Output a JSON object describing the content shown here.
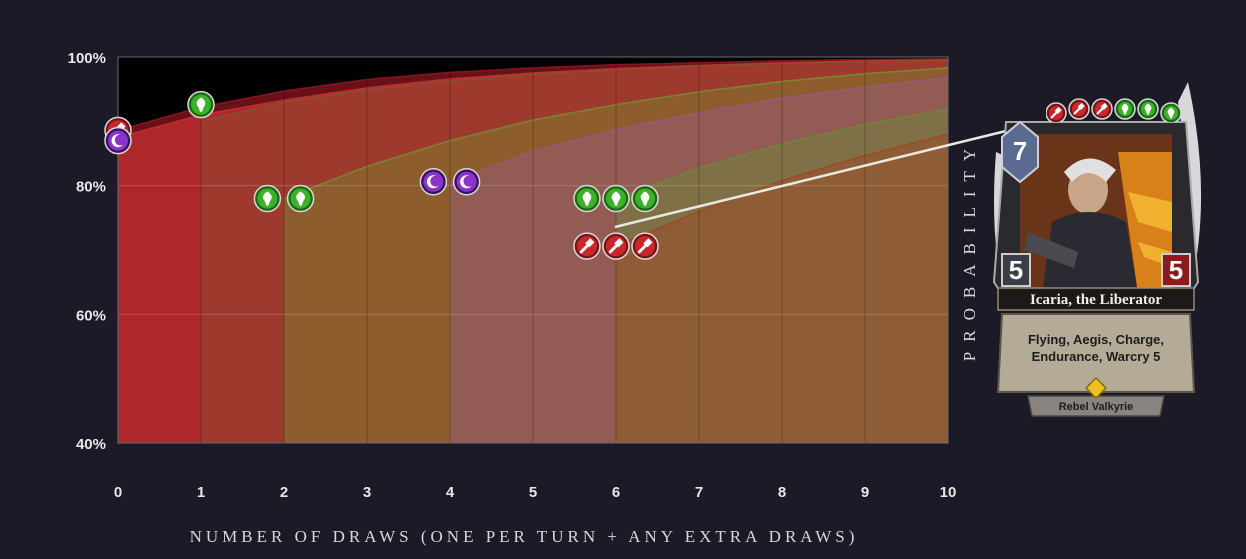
{
  "chart_data": {
    "type": "area",
    "xlabel": "NUMBER OF DRAWS (ONE PER TURN + ANY EXTRA DRAWS)",
    "ylabel": "PROBABILITY",
    "x_ticks": [
      "0",
      "1",
      "2",
      "3",
      "4",
      "5",
      "6",
      "7",
      "8",
      "9",
      "10"
    ],
    "y_ticks": [
      "40%",
      "60%",
      "80%",
      "100%"
    ],
    "xlim": [
      0,
      10
    ],
    "ylim": [
      40,
      100
    ],
    "grid": true,
    "series": [
      {
        "color": "#8c1622",
        "start": 0,
        "x": [
          0,
          1,
          2,
          3,
          4,
          5,
          6,
          7,
          8,
          9,
          10
        ],
        "y": [
          88.6,
          92.2,
          94.7,
          96.5,
          97.6,
          98.3,
          98.8,
          99.1,
          99.4,
          99.6,
          99.7
        ]
      },
      {
        "color": "#c43030",
        "start": 0,
        "x": [
          0,
          1,
          2,
          3,
          4,
          5,
          6,
          7,
          8,
          9,
          10
        ],
        "y": [
          87.5,
          91.0,
          93.3,
          95.2,
          96.6,
          97.5,
          98.2,
          98.7,
          99.1,
          99.4,
          99.6
        ]
      },
      {
        "color": "#8a5030",
        "start": 1,
        "x": [
          1,
          2,
          3,
          4,
          5,
          6,
          7,
          8,
          9,
          10
        ],
        "y": [
          90.0,
          93.0,
          94.9,
          96.3,
          97.3,
          98.0,
          98.6,
          99.0,
          99.3,
          99.5
        ]
      },
      {
        "color": "#7a8a30",
        "start": 2,
        "x": [
          2,
          3,
          4,
          5,
          6,
          7,
          8,
          9,
          10
        ],
        "y": [
          78.0,
          83.0,
          87.0,
          90.2,
          92.6,
          94.6,
          96.2,
          97.4,
          98.3
        ]
      },
      {
        "color": "#9a5880",
        "start": 4,
        "x": [
          4,
          5,
          6,
          7,
          8,
          9,
          10
        ],
        "y": [
          80.6,
          85.3,
          88.7,
          91.3,
          93.6,
          95.3,
          96.8
        ]
      },
      {
        "color": "#6a8a3a",
        "start": 6,
        "x": [
          6,
          7,
          8,
          9,
          10
        ],
        "y": [
          78.0,
          82.7,
          86.5,
          89.5,
          91.9
        ]
      },
      {
        "color": "#a04820",
        "start": 6,
        "x": [
          6,
          7,
          8,
          9,
          10
        ],
        "y": [
          70.6,
          76.0,
          80.8,
          84.7,
          88.0
        ]
      }
    ],
    "markers": [
      {
        "icon": "red-hammer",
        "x": 0,
        "y": 88.6
      },
      {
        "icon": "purple-moon",
        "x": 0,
        "y": 87.0
      },
      {
        "icon": "green-tree",
        "x": 1,
        "y": 92.6
      },
      {
        "icon": "green-tree",
        "x": 1.8,
        "y": 78.0
      },
      {
        "icon": "green-tree",
        "x": 2.2,
        "y": 78.0
      },
      {
        "icon": "purple-moon",
        "x": 3.8,
        "y": 80.6
      },
      {
        "icon": "purple-moon",
        "x": 4.2,
        "y": 80.6
      },
      {
        "icon": "green-tree",
        "x": 5.65,
        "y": 78.0
      },
      {
        "icon": "green-tree",
        "x": 6.0,
        "y": 78.0
      },
      {
        "icon": "green-tree",
        "x": 6.35,
        "y": 78.0
      },
      {
        "icon": "red-hammer",
        "x": 5.65,
        "y": 70.6
      },
      {
        "icon": "red-hammer",
        "x": 6.0,
        "y": 70.6
      },
      {
        "icon": "red-hammer",
        "x": 6.35,
        "y": 70.6
      }
    ]
  },
  "card": {
    "cost": "7",
    "attack": "5",
    "health": "5",
    "name": "Icaria, the Liberator",
    "text_line1": "Flying, Aegis, Charge,",
    "text_line2": "Endurance, Warcry 5",
    "type_line": "Rebel Valkyrie",
    "influence": [
      "red-hammer",
      "red-hammer",
      "red-hammer",
      "green-tree",
      "green-tree",
      "green-tree"
    ]
  },
  "colors": {
    "background": "#1c1a26",
    "red": "#a01e24",
    "green": "#2ea020",
    "purple": "#7020a0"
  }
}
